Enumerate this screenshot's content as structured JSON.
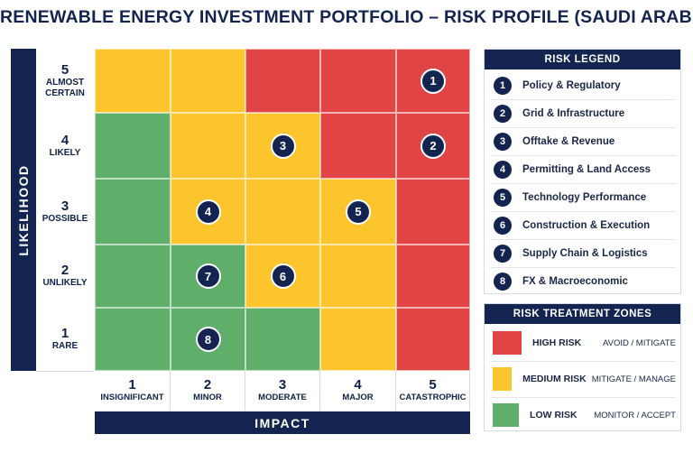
{
  "title": "RENEWABLE ENERGY INVESTMENT PORTFOLIO – RISK PROFILE (SAUDI ARABIA)",
  "colors": {
    "red": "#e04444",
    "yellow": "#fcc52e",
    "green": "#5fae6a",
    "navy": "#12244f"
  },
  "y_axis": {
    "label": "LIKELIHOOD",
    "levels": [
      {
        "num": "5",
        "text": "ALMOST\nCERTAIN"
      },
      {
        "num": "4",
        "text": "LIKELY"
      },
      {
        "num": "3",
        "text": "POSSIBLE"
      },
      {
        "num": "2",
        "text": "UNLIKELY"
      },
      {
        "num": "1",
        "text": "RARE"
      }
    ]
  },
  "x_axis": {
    "label": "IMPACT",
    "levels": [
      {
        "num": "1",
        "text": "INSIGNIFICANT"
      },
      {
        "num": "2",
        "text": "MINOR"
      },
      {
        "num": "3",
        "text": "MODERATE"
      },
      {
        "num": "4",
        "text": "MAJOR"
      },
      {
        "num": "5",
        "text": "CATASTROPHIC"
      }
    ]
  },
  "matrix": [
    [
      "yellow",
      "yellow",
      "red",
      "red",
      "red"
    ],
    [
      "green",
      "yellow",
      "yellow",
      "red",
      "red"
    ],
    [
      "green",
      "yellow",
      "yellow",
      "yellow",
      "red"
    ],
    [
      "green",
      "green",
      "yellow",
      "yellow",
      "red"
    ],
    [
      "green",
      "green",
      "green",
      "yellow",
      "red"
    ]
  ],
  "markers": [
    {
      "id": "1",
      "impact": 5,
      "likelihood": 5
    },
    {
      "id": "2",
      "impact": 5,
      "likelihood": 4
    },
    {
      "id": "3",
      "impact": 3,
      "likelihood": 4
    },
    {
      "id": "4",
      "impact": 2,
      "likelihood": 3
    },
    {
      "id": "5",
      "impact": 4,
      "likelihood": 3
    },
    {
      "id": "6",
      "impact": 3,
      "likelihood": 2
    },
    {
      "id": "7",
      "impact": 2,
      "likelihood": 2
    },
    {
      "id": "8",
      "impact": 2,
      "likelihood": 1
    }
  ],
  "legend": {
    "title": "RISK LEGEND",
    "items": [
      {
        "num": "1",
        "label": "Policy & Regulatory"
      },
      {
        "num": "2",
        "label": "Grid & Infrastructure"
      },
      {
        "num": "3",
        "label": "Offtake & Revenue"
      },
      {
        "num": "4",
        "label": "Permitting & Land Access"
      },
      {
        "num": "5",
        "label": "Technology Performance"
      },
      {
        "num": "6",
        "label": "Construction & Execution"
      },
      {
        "num": "7",
        "label": "Supply Chain & Logistics"
      },
      {
        "num": "8",
        "label": "FX & Macroeconomic"
      }
    ]
  },
  "zones": {
    "title": "RISK TREATMENT ZONES",
    "items": [
      {
        "color": "red",
        "name": "HIGH RISK",
        "action": "AVOID / MITIGATE"
      },
      {
        "color": "yellow",
        "name": "MEDIUM RISK",
        "action": "MITIGATE / MANAGE"
      },
      {
        "color": "green",
        "name": "LOW RISK",
        "action": "MONITOR / ACCEPT"
      }
    ]
  }
}
